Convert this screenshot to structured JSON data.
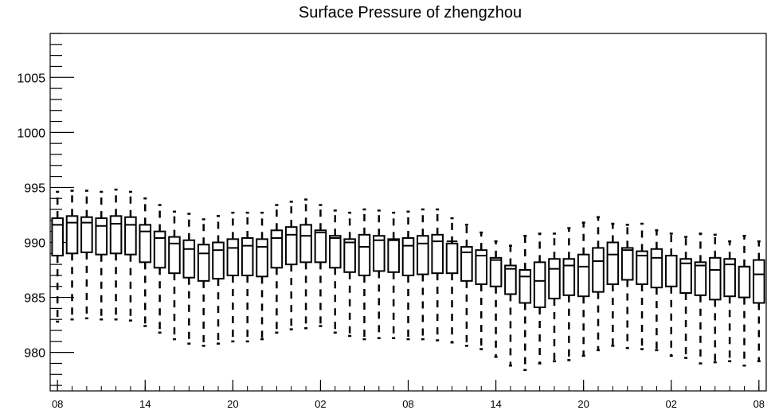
{
  "chart_data": {
    "type": "box",
    "title": "Surface Pressure of zhengzhou",
    "xlabel": "",
    "ylabel": "",
    "ylim": [
      976.5,
      1009
    ],
    "yticks": [
      980,
      985,
      990,
      995,
      1000,
      1005
    ],
    "ytick_labels": [
      "980",
      "985",
      "990",
      "995",
      "1000",
      "1005"
    ],
    "xtick_labels": [
      "08",
      "14",
      "20",
      "02",
      "08",
      "14",
      "20",
      "02",
      "08"
    ],
    "xtick_box_index": [
      0,
      6,
      12,
      18,
      24,
      30,
      36,
      42,
      48
    ],
    "grid": false,
    "series": [
      {
        "whisker_low": [
          982.8,
          983.0,
          983.1,
          983.0,
          983.0,
          982.9,
          982.4,
          981.8,
          981.2,
          980.8,
          980.6,
          980.8,
          981.0,
          981.0,
          981.2,
          981.8,
          982.1,
          982.2,
          982.4,
          981.8,
          981.5,
          981.2,
          981.3,
          981.3,
          981.2,
          981.2,
          981.1,
          980.9,
          980.6,
          980.3,
          979.6,
          978.8,
          978.4,
          979.0,
          979.2,
          979.3,
          979.7,
          980.2,
          980.6,
          980.4,
          980.3,
          980.2,
          979.7,
          979.5,
          979.0,
          979.1,
          979.2,
          978.8,
          979.2
        ],
        "q1": [
          988.8,
          989.0,
          989.1,
          988.9,
          989.0,
          988.9,
          988.2,
          987.7,
          987.2,
          986.8,
          986.5,
          986.7,
          987.0,
          987.0,
          986.9,
          987.7,
          988.0,
          988.2,
          988.2,
          987.7,
          987.3,
          987.0,
          987.4,
          987.3,
          987.0,
          987.1,
          987.2,
          987.2,
          986.5,
          986.2,
          986.0,
          985.3,
          984.5,
          984.1,
          984.9,
          985.2,
          985.1,
          985.5,
          986.2,
          986.6,
          986.2,
          985.9,
          986.0,
          985.4,
          985.2,
          984.8,
          985.1,
          985.0,
          984.5
        ],
        "median": [
          991.6,
          991.8,
          991.8,
          991.5,
          991.7,
          991.6,
          991.0,
          990.4,
          989.9,
          989.4,
          989.0,
          989.3,
          989.5,
          989.7,
          989.6,
          990.4,
          990.7,
          990.6,
          990.9,
          990.4,
          990.0,
          989.6,
          990.2,
          990.2,
          989.7,
          989.9,
          990.1,
          990.1,
          989.1,
          988.8,
          988.4,
          987.6,
          986.9,
          986.5,
          987.6,
          987.9,
          987.8,
          988.3,
          988.9,
          989.3,
          988.8,
          988.6,
          988.8,
          988.1,
          987.9,
          987.5,
          988.0,
          987.8,
          987.1
        ],
        "q3": [
          992.2,
          992.4,
          992.3,
          992.2,
          992.4,
          992.3,
          991.6,
          991.0,
          990.5,
          990.2,
          989.8,
          990.0,
          990.3,
          990.4,
          990.3,
          991.1,
          991.4,
          991.6,
          991.1,
          990.6,
          990.3,
          990.7,
          990.6,
          990.3,
          990.4,
          990.6,
          990.7,
          989.9,
          989.6,
          989.3,
          988.6,
          987.9,
          987.5,
          988.2,
          988.5,
          988.5,
          988.9,
          989.5,
          990.0,
          989.5,
          989.2,
          989.4,
          988.8,
          988.5,
          988.2,
          988.6,
          988.5,
          987.8,
          988.4
        ],
        "whisker_high": [
          994.6,
          994.7,
          994.7,
          994.6,
          994.8,
          994.6,
          994.0,
          993.4,
          992.8,
          992.6,
          992.1,
          992.4,
          992.7,
          992.7,
          992.7,
          993.4,
          993.7,
          993.9,
          993.4,
          992.9,
          992.7,
          993.0,
          992.9,
          992.7,
          992.8,
          993.0,
          993.0,
          992.2,
          991.6,
          990.9,
          990.1,
          989.7,
          990.6,
          990.8,
          990.8,
          991.3,
          991.8,
          992.3,
          991.7,
          991.6,
          991.7,
          991.1,
          990.8,
          990.5,
          990.8,
          990.7,
          990.1,
          990.6,
          990.1
        ]
      }
    ]
  }
}
